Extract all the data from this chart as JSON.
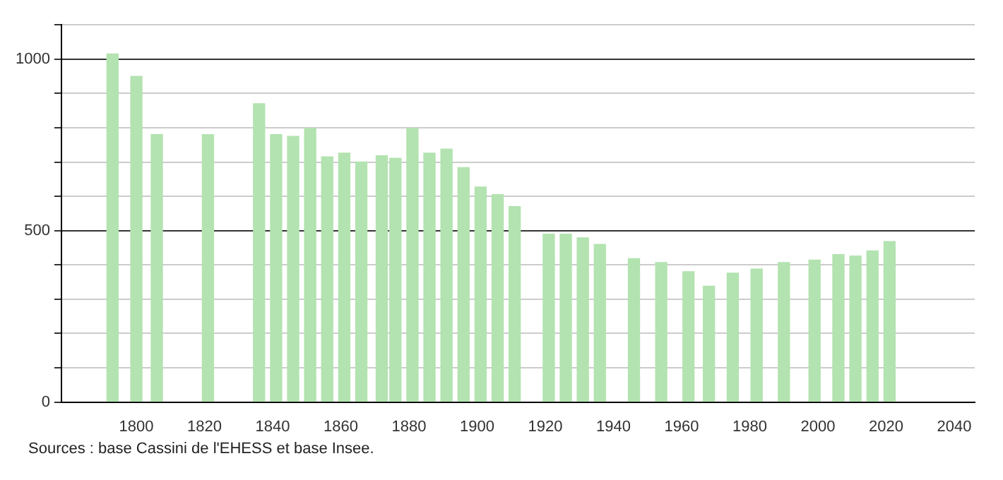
{
  "chart_data": {
    "type": "bar",
    "x": [
      1793,
      1800,
      1806,
      1821,
      1836,
      1841,
      1846,
      1851,
      1856,
      1861,
      1866,
      1872,
      1876,
      1881,
      1886,
      1891,
      1896,
      1901,
      1906,
      1911,
      1921,
      1926,
      1931,
      1936,
      1946,
      1954,
      1962,
      1968,
      1975,
      1982,
      1990,
      1999,
      2006,
      2011,
      2016,
      2021
    ],
    "values": [
      1015,
      950,
      780,
      780,
      870,
      780,
      775,
      798,
      715,
      726,
      700,
      718,
      711,
      798,
      726,
      738,
      684,
      627,
      605,
      570,
      490,
      490,
      479,
      460,
      418,
      407,
      380,
      338,
      376,
      388,
      407,
      414,
      430,
      426,
      441,
      468
    ],
    "color": "#b3e3b0",
    "xlim": [
      1778,
      2046
    ],
    "xticks": [
      1800,
      1820,
      1840,
      1860,
      1880,
      1900,
      1920,
      1940,
      1960,
      1980,
      2000,
      2020,
      2040
    ],
    "ylim": [
      0,
      1100
    ],
    "yticks": [
      0,
      {
        "value": 100,
        "label": null
      },
      {
        "value": 200,
        "label": null
      },
      {
        "value": 300,
        "label": null
      },
      {
        "value": 400,
        "label": null
      },
      500,
      {
        "value": 600,
        "label": null
      },
      {
        "value": 700,
        "label": null
      },
      {
        "value": 800,
        "label": null
      },
      {
        "value": 900,
        "label": null
      },
      1000,
      {
        "value": 1100,
        "label": null
      }
    ],
    "grid": "y",
    "legend": false,
    "annotations": [
      "Sources : base Cassini de l'EHESS et base Insee."
    ]
  }
}
